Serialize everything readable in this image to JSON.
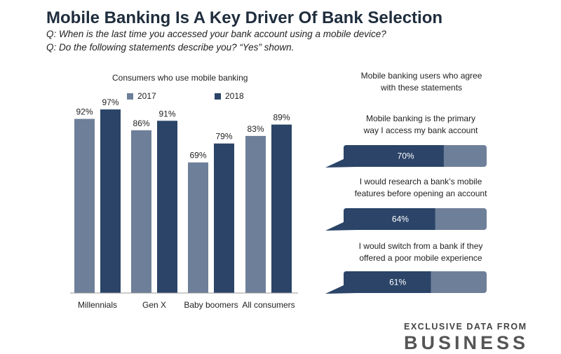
{
  "title": "Mobile Banking Is A Key Driver Of Bank Selection",
  "questions": [
    "Q: When is the last time you accessed your bank account using a mobile device?",
    "Q: Do the following statements describe you? “Yes” shown."
  ],
  "colors": {
    "c2017": "#6e7f99",
    "c2018": "#2b4468",
    "bar_bg": "#6e7f99",
    "bar_fg": "#2b4468",
    "axis": "#9a9a9a"
  },
  "chart_data": [
    {
      "type": "bar",
      "title": "Consumers who use mobile banking",
      "categories": [
        "Millennials",
        "Gen X",
        "Baby boomers",
        "All consumers"
      ],
      "series": [
        {
          "name": "2017",
          "values": [
            92,
            86,
            69,
            83
          ]
        },
        {
          "name": "2018",
          "values": [
            97,
            91,
            79,
            89
          ]
        }
      ],
      "value_suffix": "%",
      "ylim": [
        0,
        100
      ],
      "legend": "top"
    },
    {
      "type": "bar",
      "title": "Mobile banking users who agree with these statements",
      "categories": [
        "Mobile banking is the primary way I access my bank account",
        "I would research a bank’s mobile features before opening an account",
        "I would switch from a bank if they offered a poor mobile experience"
      ],
      "values": [
        70,
        64,
        61
      ],
      "value_suffix": "%",
      "ylim": [
        0,
        100
      ]
    }
  ],
  "left_labels": {
    "subtitle": "Consumers who use mobile banking",
    "legend_2017": "2017",
    "legend_2018": "2018"
  },
  "right_labels": {
    "subtitle_line1": "Mobile banking users who agree",
    "subtitle_line2": "with these statements",
    "statements": [
      [
        "Mobile banking is the primary",
        "way I access my bank account"
      ],
      [
        "I would research a bank’s mobile",
        "features before opening an account"
      ],
      [
        "I would switch from a bank if they",
        "offered a poor mobile experience"
      ]
    ]
  },
  "footer": {
    "line1": "EXCLUSIVE DATA FROM",
    "line2": "BUSINESS"
  }
}
